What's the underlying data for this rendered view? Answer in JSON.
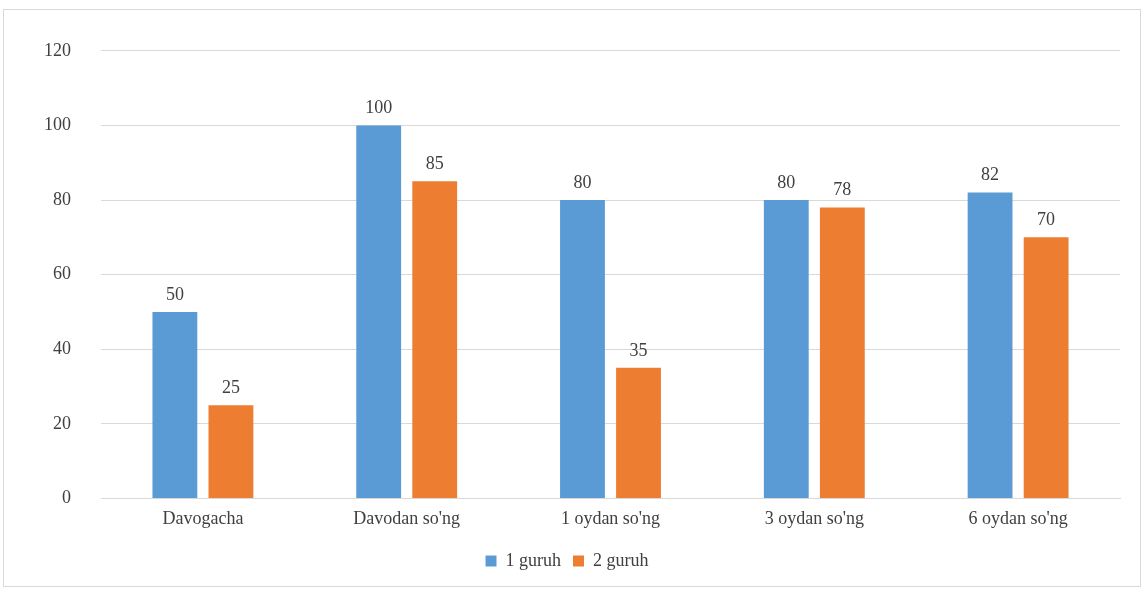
{
  "chart_data": {
    "type": "bar",
    "categories": [
      "Davogacha",
      "Davodan so'ng",
      "1 oydan so'ng",
      "3 oydan so'ng",
      "6 oydan so'ng"
    ],
    "series": [
      {
        "name": "1 guruh",
        "color": "#5b9bd5",
        "values": [
          50,
          100,
          80,
          80,
          82
        ]
      },
      {
        "name": "2 guruh",
        "color": "#ed7d31",
        "values": [
          25,
          85,
          35,
          78,
          70
        ]
      }
    ],
    "ylim": [
      0,
      120
    ],
    "yticks": [
      0,
      20,
      40,
      60,
      80,
      100,
      120
    ],
    "grid": "y",
    "legend": "bottom",
    "data_labels": true
  }
}
